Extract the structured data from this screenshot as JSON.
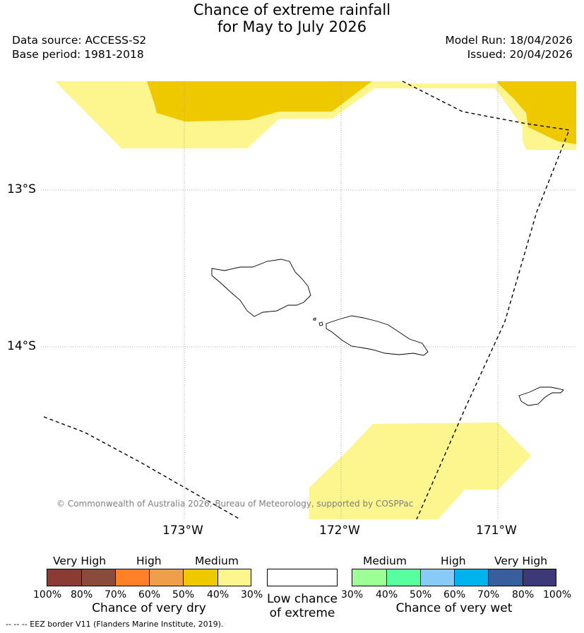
{
  "title": {
    "line1": "Chance of extreme rainfall",
    "line2": "for May to July 2026"
  },
  "meta": {
    "data_source": "Data source: ACCESS-S2",
    "base_period": "Base period: 1981-2018",
    "model_run": "Model Run: 18/04/2026",
    "issued": "Issued: 20/04/2026"
  },
  "map": {
    "lat_labels": [
      "13°S",
      "14°S"
    ],
    "lon_labels": [
      "173°W",
      "172°W",
      "171°W"
    ],
    "copyright": "© Commonwealth of Australia 2026, Bureau of Meteorology, supported by COSPPac",
    "colors": {
      "medium_dry_40_50": "#eec900",
      "medium_dry_30_40": "#fdf58e",
      "land_outline": "#000000",
      "grid": "#9a9a9a"
    }
  },
  "legend_dry": {
    "categories": [
      "Very High",
      "High",
      "Medium"
    ],
    "ticks": [
      "100%",
      "80%",
      "70%",
      "60%",
      "50%",
      "40%",
      "30%"
    ],
    "colors": [
      "#8b3a34",
      "#8b4b3c",
      "#ff8127",
      "#ef9e4b",
      "#eec900",
      "#fdf58e"
    ],
    "caption": "Chance of very dry"
  },
  "legend_low": {
    "caption_line1": "Low chance",
    "caption_line2": "of extreme",
    "color": "#ffffff"
  },
  "legend_wet": {
    "categories": [
      "Medium",
      "High",
      "Very High"
    ],
    "ticks": [
      "30%",
      "40%",
      "50%",
      "60%",
      "70%",
      "80%",
      "100%"
    ],
    "colors": [
      "#9bff95",
      "#57ff9f",
      "#88cbf8",
      "#00b3ec",
      "#385f9b",
      "#3d3877"
    ],
    "caption": "Chance of very wet"
  },
  "footnote": "--  --  -- EEZ border V11 (Flanders Marine Institute, 2019)."
}
